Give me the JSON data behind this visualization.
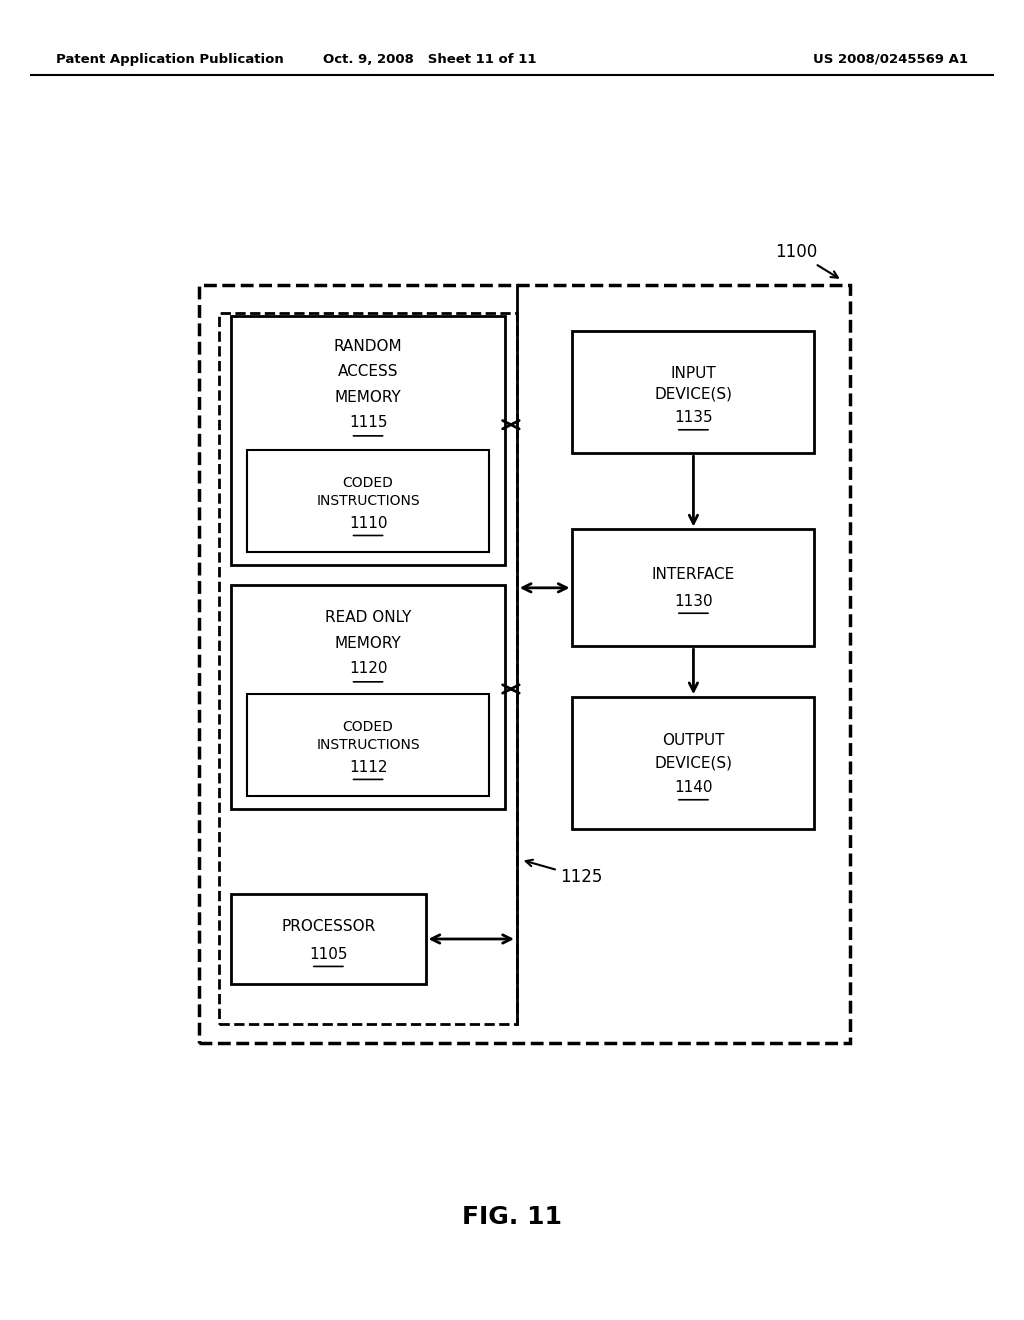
{
  "header_left": "Patent Application Publication",
  "header_mid": "Oct. 9, 2008   Sheet 11 of 11",
  "header_right": "US 2008/0245569 A1",
  "fig_label": "FIG. 11",
  "bg_color": "#ffffff",
  "box_color": "#000000",
  "text_color": "#000000"
}
